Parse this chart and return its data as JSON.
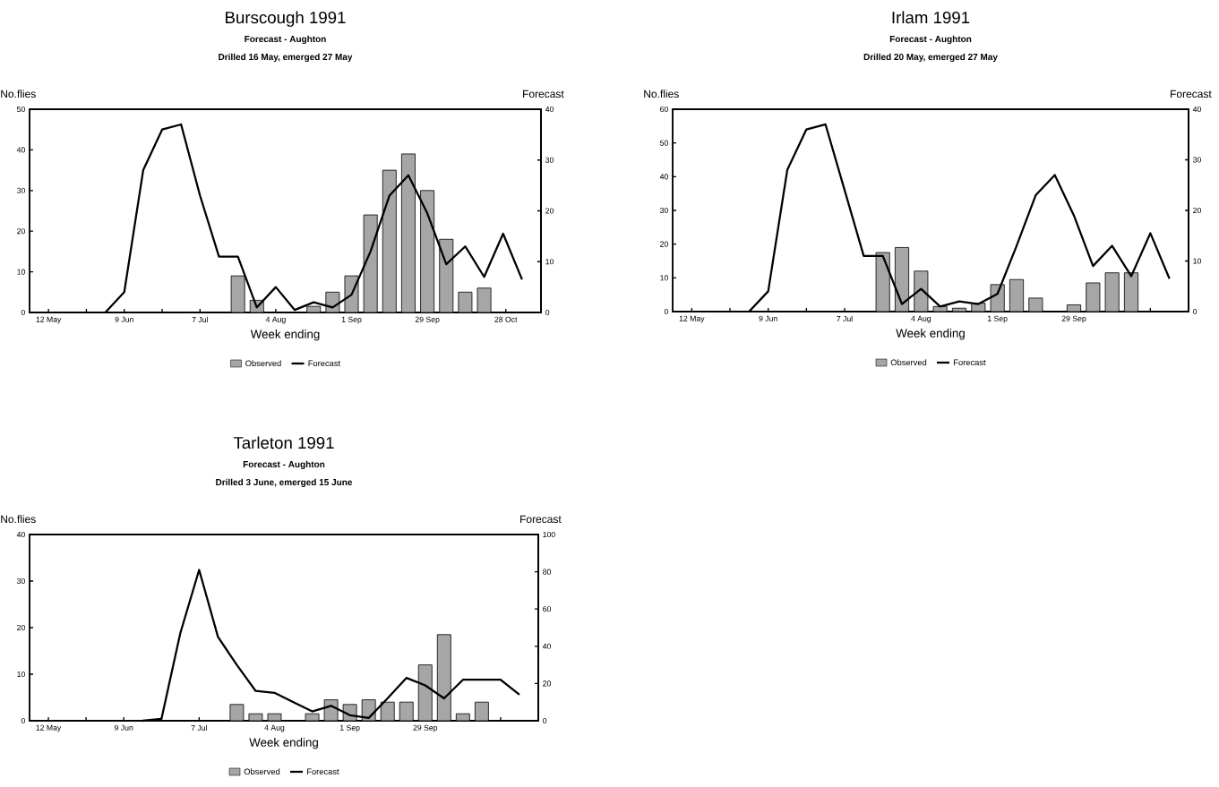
{
  "chart_data": [
    {
      "type": "bar",
      "title": "Burscough 1991",
      "subtitle": "Forecast - Aughton",
      "annotations": [
        "Drilled 16 May, emerged 27 May"
      ],
      "xlabel": "Week ending",
      "ylabel": "No.flies",
      "y2label": "Forecast",
      "xlim": [
        "1991-05-05",
        "1991-11-10"
      ],
      "xticks": [
        {
          "value": "1991-05-12",
          "label": "12 May"
        },
        {
          "value": "1991-05-26",
          "label": null
        },
        {
          "value": "1991-06-09",
          "label": "9 Jun"
        },
        {
          "value": "1991-06-23",
          "label": null
        },
        {
          "value": "1991-07-07",
          "label": "7 Jul"
        },
        {
          "value": "1991-07-21",
          "label": null
        },
        {
          "value": "1991-08-04",
          "label": "4 Aug"
        },
        {
          "value": "1991-08-18",
          "label": null
        },
        {
          "value": "1991-09-01",
          "label": "1 Sep"
        },
        {
          "value": "1991-09-15",
          "label": null
        },
        {
          "value": "1991-09-29",
          "label": "29 Sep"
        },
        {
          "value": "1991-10-13",
          "label": null
        },
        {
          "value": "1991-10-28",
          "label": "28 Oct"
        }
      ],
      "ylim": [
        0,
        50
      ],
      "yticks": [
        0,
        10,
        20,
        30,
        40,
        50
      ],
      "y2lim": [
        0,
        40
      ],
      "y2ticks": [
        0,
        10,
        20,
        30,
        40
      ],
      "legend": "bottom",
      "series": [
        {
          "name": "Observed",
          "color": "#a6a6a6",
          "x": [
            "1991-07-21",
            "1991-07-28",
            "1991-08-18",
            "1991-08-25",
            "1991-09-01",
            "1991-09-08",
            "1991-09-15",
            "1991-09-22",
            "1991-09-29",
            "1991-10-06",
            "1991-10-13",
            "1991-10-20"
          ],
          "values": [
            9,
            3,
            1.5,
            5,
            9,
            24,
            35,
            39,
            30,
            18,
            5,
            6
          ]
        },
        {
          "name": "Forecast",
          "type": "line",
          "axis": "y2",
          "color": "#000000",
          "x": [
            "1991-06-02",
            "1991-06-09",
            "1991-06-16",
            "1991-06-23",
            "1991-06-30",
            "1991-07-07",
            "1991-07-14",
            "1991-07-21",
            "1991-07-28",
            "1991-08-04",
            "1991-08-11",
            "1991-08-18",
            "1991-08-25",
            "1991-09-01",
            "1991-09-08",
            "1991-09-15",
            "1991-09-22",
            "1991-09-29",
            "1991-10-06",
            "1991-10-13",
            "1991-10-20",
            "1991-10-27",
            "1991-11-03"
          ],
          "values": [
            0,
            4,
            28,
            36,
            37,
            23,
            11,
            11,
            1,
            5,
            0.5,
            2,
            1,
            3.5,
            12,
            23,
            27,
            19.5,
            9.5,
            13,
            7,
            15.5,
            6.5
          ]
        }
      ]
    },
    {
      "type": "bar",
      "title": "Irlam 1991",
      "subtitle": "Forecast - Aughton",
      "annotations": [
        "Drilled 20 May, emerged 27 May"
      ],
      "xlabel": "Week ending",
      "ylabel": "No.flies",
      "y2label": "Forecast",
      "xlim": [
        "1991-05-05",
        "1991-11-10"
      ],
      "xticks": [
        {
          "value": "1991-05-12",
          "label": "12 May"
        },
        {
          "value": "1991-05-26",
          "label": null
        },
        {
          "value": "1991-06-09",
          "label": "9 Jun"
        },
        {
          "value": "1991-06-23",
          "label": null
        },
        {
          "value": "1991-07-07",
          "label": "7 Jul"
        },
        {
          "value": "1991-07-21",
          "label": null
        },
        {
          "value": "1991-08-04",
          "label": "4 Aug"
        },
        {
          "value": "1991-08-18",
          "label": null
        },
        {
          "value": "1991-09-01",
          "label": "1 Sep"
        },
        {
          "value": "1991-09-15",
          "label": null
        },
        {
          "value": "1991-09-29",
          "label": "29 Sep"
        },
        {
          "value": "1991-10-13",
          "label": null
        },
        {
          "value": "1991-10-27",
          "label": null
        }
      ],
      "ylim": [
        0,
        60
      ],
      "yticks": [
        0,
        10,
        20,
        30,
        40,
        50,
        60
      ],
      "y2lim": [
        0,
        40
      ],
      "y2ticks": [
        0,
        10,
        20,
        30,
        40
      ],
      "legend": "bottom",
      "series": [
        {
          "name": "Observed",
          "color": "#a6a6a6",
          "x": [
            "1991-07-21",
            "1991-07-28",
            "1991-08-04",
            "1991-08-11",
            "1991-08-18",
            "1991-08-25",
            "1991-09-01",
            "1991-09-08",
            "1991-09-15",
            "1991-09-29",
            "1991-10-06",
            "1991-10-13",
            "1991-10-20"
          ],
          "values": [
            17.5,
            19,
            12,
            1.5,
            1,
            2.5,
            8,
            9.5,
            4,
            2,
            8.5,
            11.5,
            11.5
          ]
        },
        {
          "name": "Forecast",
          "type": "line",
          "axis": "y2",
          "color": "#000000",
          "x": [
            "1991-06-02",
            "1991-06-09",
            "1991-06-16",
            "1991-06-23",
            "1991-06-30",
            "1991-07-07",
            "1991-07-14",
            "1991-07-21",
            "1991-07-28",
            "1991-08-04",
            "1991-08-11",
            "1991-08-18",
            "1991-08-25",
            "1991-09-01",
            "1991-09-08",
            "1991-09-15",
            "1991-09-22",
            "1991-09-29",
            "1991-10-06",
            "1991-10-13",
            "1991-10-20",
            "1991-10-27",
            "1991-11-03"
          ],
          "values": [
            0,
            4,
            28,
            36,
            37,
            24,
            11,
            11,
            1.5,
            4.5,
            1,
            2,
            1.5,
            3.5,
            13,
            23,
            27,
            19,
            9,
            13,
            7,
            15.5,
            6.5
          ]
        }
      ]
    },
    {
      "type": "bar",
      "title": "Tarleton 1991",
      "subtitle": "Forecast - Aughton",
      "annotations": [
        "Drilled 3 June, emerged 15 June"
      ],
      "xlabel": "Week ending",
      "ylabel": "No.flies",
      "y2label": "Forecast",
      "xlim": [
        "1991-05-05",
        "1991-11-10"
      ],
      "xticks": [
        {
          "value": "1991-05-12",
          "label": "12 May"
        },
        {
          "value": "1991-05-26",
          "label": null
        },
        {
          "value": "1991-06-09",
          "label": "9 Jun"
        },
        {
          "value": "1991-06-23",
          "label": null
        },
        {
          "value": "1991-07-07",
          "label": "7 Jul"
        },
        {
          "value": "1991-07-21",
          "label": null
        },
        {
          "value": "1991-08-04",
          "label": "4 Aug"
        },
        {
          "value": "1991-08-18",
          "label": null
        },
        {
          "value": "1991-09-01",
          "label": "1 Sep"
        },
        {
          "value": "1991-09-15",
          "label": null
        },
        {
          "value": "1991-09-29",
          "label": "29 Sep"
        },
        {
          "value": "1991-10-13",
          "label": null
        },
        {
          "value": "1991-10-27",
          "label": null
        }
      ],
      "ylim": [
        0,
        40
      ],
      "yticks": [
        0,
        10,
        20,
        30,
        40
      ],
      "y2lim": [
        0,
        100
      ],
      "y2ticks": [
        0,
        20,
        40,
        60,
        80,
        100
      ],
      "legend": "bottom",
      "series": [
        {
          "name": "Observed",
          "color": "#a6a6a6",
          "x": [
            "1991-07-21",
            "1991-07-28",
            "1991-08-04",
            "1991-08-18",
            "1991-08-25",
            "1991-09-01",
            "1991-09-08",
            "1991-09-15",
            "1991-09-22",
            "1991-09-29",
            "1991-10-06",
            "1991-10-13",
            "1991-10-20"
          ],
          "values": [
            3.5,
            1.5,
            1.5,
            1.5,
            4.5,
            3.5,
            4.5,
            4,
            4,
            12,
            18.5,
            1.5,
            4
          ]
        },
        {
          "name": "Forecast",
          "type": "line",
          "axis": "y2",
          "color": "#000000",
          "x": [
            "1991-06-16",
            "1991-06-23",
            "1991-06-30",
            "1991-07-07",
            "1991-07-14",
            "1991-07-21",
            "1991-07-28",
            "1991-08-04",
            "1991-08-11",
            "1991-08-18",
            "1991-08-25",
            "1991-09-01",
            "1991-09-08",
            "1991-09-15",
            "1991-09-22",
            "1991-09-29",
            "1991-10-06",
            "1991-10-13",
            "1991-10-20",
            "1991-10-27",
            "1991-11-03"
          ],
          "values": [
            0,
            1,
            47,
            81,
            45,
            30,
            16,
            15,
            10,
            5,
            8,
            3,
            1.5,
            12,
            23,
            19,
            12,
            22,
            22,
            22,
            14
          ]
        }
      ]
    }
  ]
}
